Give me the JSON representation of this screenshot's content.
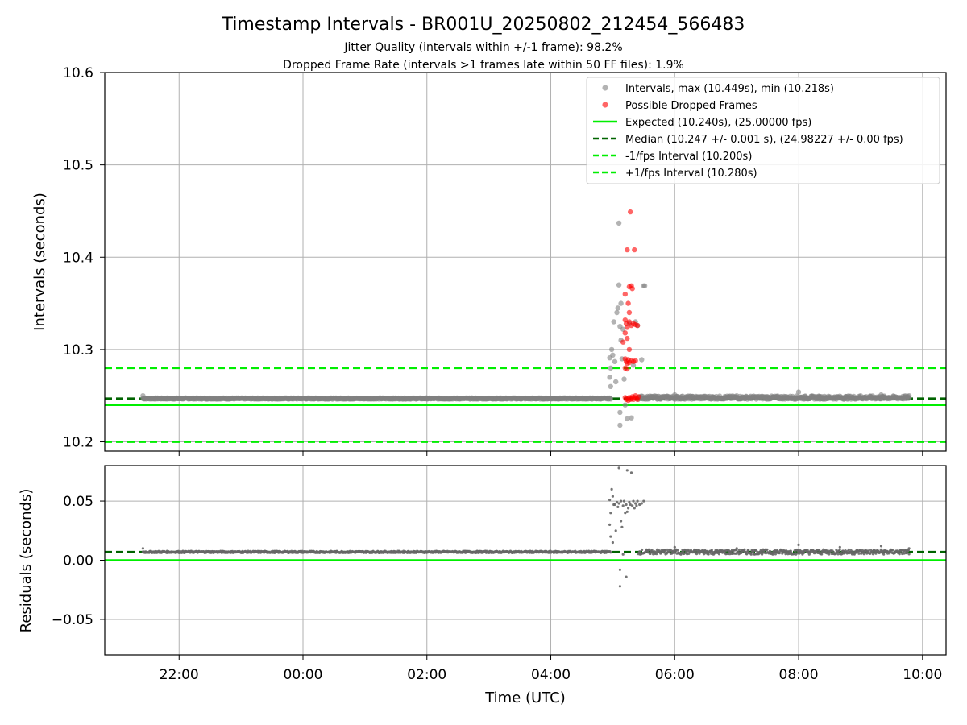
{
  "title": "Timestamp Intervals - BR001U_20250802_212454_566483",
  "subtitle_1": "Jitter Quality (intervals within +/-1 frame): 98.2%",
  "subtitle_2": "Dropped Frame Rate (intervals >1 frames late within 50 FF files): 1.9%",
  "chart_data": [
    {
      "type": "scatter",
      "panel": "top",
      "ylabel": "Intervals (seconds)",
      "xlabel": "",
      "xlim_hours": [
        20.8,
        34.38
      ],
      "ylim": [
        10.19,
        10.6
      ],
      "yticks": [
        10.2,
        10.3,
        10.4,
        10.5,
        10.6
      ],
      "ytick_labels": [
        "10.2",
        "10.3",
        "10.4",
        "10.5",
        "10.6"
      ],
      "grid": true,
      "legend_position": "top-right",
      "series": [
        {
          "name": "Intervals, max (10.449s), min (10.218s)",
          "kind": "scatter",
          "color": "#808080",
          "baseline_segments": [
            {
              "x_start": "21:25",
              "x_end": "04:58",
              "y": 10.247
            },
            {
              "x_start": "05:25",
              "x_end": "09:47",
              "y": 10.248
            }
          ],
          "points": [
            {
              "x": "21:25",
              "y": 10.25
            },
            {
              "x": "04:57",
              "y": 10.291
            },
            {
              "x": "04:57",
              "y": 10.27
            },
            {
              "x": "04:58",
              "y": 10.26
            },
            {
              "x": "04:58",
              "y": 10.28
            },
            {
              "x": "04:59",
              "y": 10.3
            },
            {
              "x": "05:00",
              "y": 10.294
            },
            {
              "x": "05:01",
              "y": 10.33
            },
            {
              "x": "05:02",
              "y": 10.287
            },
            {
              "x": "05:03",
              "y": 10.265
            },
            {
              "x": "05:04",
              "y": 10.34
            },
            {
              "x": "05:05",
              "y": 10.345
            },
            {
              "x": "05:06",
              "y": 10.437
            },
            {
              "x": "05:06",
              "y": 10.37
            },
            {
              "x": "05:07",
              "y": 10.325
            },
            {
              "x": "05:07",
              "y": 10.232
            },
            {
              "x": "05:07",
              "y": 10.218
            },
            {
              "x": "05:08",
              "y": 10.35
            },
            {
              "x": "05:08",
              "y": 10.31
            },
            {
              "x": "05:09",
              "y": 10.29
            },
            {
              "x": "05:10",
              "y": 10.322
            },
            {
              "x": "05:11",
              "y": 10.268
            },
            {
              "x": "05:12",
              "y": 10.24
            },
            {
              "x": "05:14",
              "y": 10.225
            },
            {
              "x": "05:16",
              "y": 10.328
            },
            {
              "x": "05:18",
              "y": 10.226
            },
            {
              "x": "05:20",
              "y": 10.283
            },
            {
              "x": "05:22",
              "y": 10.33
            },
            {
              "x": "05:24",
              "y": 10.326
            },
            {
              "x": "05:28",
              "y": 10.289
            },
            {
              "x": "05:30",
              "y": 10.369
            },
            {
              "x": "05:31",
              "y": 10.369
            },
            {
              "x": "06:00",
              "y": 10.251
            },
            {
              "x": "07:00",
              "y": 10.25
            },
            {
              "x": "08:00",
              "y": 10.254
            },
            {
              "x": "08:20",
              "y": 10.249
            },
            {
              "x": "09:00",
              "y": 10.25
            },
            {
              "x": "09:20",
              "y": 10.251
            },
            {
              "x": "09:47",
              "y": 10.25
            }
          ]
        },
        {
          "name": "Possible Dropped Frames",
          "kind": "scatter",
          "color": "#ff0000",
          "points": [
            {
              "x": "05:14",
              "y": 10.408
            },
            {
              "x": "05:17",
              "y": 10.449
            },
            {
              "x": "05:21",
              "y": 10.408
            },
            {
              "x": "05:12",
              "y": 10.36
            },
            {
              "x": "05:16",
              "y": 10.368
            },
            {
              "x": "05:18",
              "y": 10.369
            },
            {
              "x": "05:19",
              "y": 10.366
            },
            {
              "x": "05:15",
              "y": 10.35
            },
            {
              "x": "05:16",
              "y": 10.34
            },
            {
              "x": "05:12",
              "y": 10.332
            },
            {
              "x": "05:13",
              "y": 10.328
            },
            {
              "x": "05:14",
              "y": 10.324
            },
            {
              "x": "05:16",
              "y": 10.33
            },
            {
              "x": "05:18",
              "y": 10.326
            },
            {
              "x": "05:20",
              "y": 10.328
            },
            {
              "x": "05:22",
              "y": 10.327
            },
            {
              "x": "05:24",
              "y": 10.326
            },
            {
              "x": "05:12",
              "y": 10.318
            },
            {
              "x": "05:14",
              "y": 10.312
            },
            {
              "x": "05:10",
              "y": 10.308
            },
            {
              "x": "05:16",
              "y": 10.3
            },
            {
              "x": "05:12",
              "y": 10.29
            },
            {
              "x": "05:13",
              "y": 10.287
            },
            {
              "x": "05:14",
              "y": 10.285
            },
            {
              "x": "05:15",
              "y": 10.289
            },
            {
              "x": "05:16",
              "y": 10.286
            },
            {
              "x": "05:18",
              "y": 10.288
            },
            {
              "x": "05:20",
              "y": 10.287
            },
            {
              "x": "05:22",
              "y": 10.288
            },
            {
              "x": "05:12",
              "y": 10.28
            },
            {
              "x": "05:14",
              "y": 10.279
            },
            {
              "x": "05:12",
              "y": 10.248
            },
            {
              "x": "05:13",
              "y": 10.246
            },
            {
              "x": "05:14",
              "y": 10.247
            },
            {
              "x": "05:15",
              "y": 10.245
            },
            {
              "x": "05:16",
              "y": 10.248
            },
            {
              "x": "05:17",
              "y": 10.246
            },
            {
              "x": "05:18",
              "y": 10.247
            },
            {
              "x": "05:19",
              "y": 10.249
            },
            {
              "x": "05:20",
              "y": 10.246
            },
            {
              "x": "05:21",
              "y": 10.248
            },
            {
              "x": "05:22",
              "y": 10.25
            },
            {
              "x": "05:23",
              "y": 10.247
            },
            {
              "x": "05:24",
              "y": 10.246
            },
            {
              "x": "05:25",
              "y": 10.249
            }
          ]
        },
        {
          "name": "Expected (10.240s), (25.00000 fps)",
          "kind": "hline",
          "y": 10.24,
          "color": "#00ee00",
          "style": "solid"
        },
        {
          "name": "Median (10.247 +/- 0.001 s), (24.98227 +/- 0.00 fps)",
          "kind": "hline",
          "y": 10.247,
          "color": "#006400",
          "style": "dashed"
        },
        {
          "name": "-1/fps Interval (10.200s)",
          "kind": "hline",
          "y": 10.2,
          "color": "#00ee00",
          "style": "dashed"
        },
        {
          "name": "+1/fps Interval (10.280s)",
          "kind": "hline",
          "y": 10.28,
          "color": "#00ee00",
          "style": "dashed"
        }
      ]
    },
    {
      "type": "scatter",
      "panel": "bottom",
      "ylabel": "Residuals (seconds)",
      "xlabel": "Time (UTC)",
      "xlim_hours": [
        20.8,
        34.38
      ],
      "ylim": [
        -0.08,
        0.08
      ],
      "yticks": [
        -0.05,
        0.0,
        0.05
      ],
      "ytick_labels": [
        "−0.05",
        "0.00",
        "0.05"
      ],
      "xticks_hours": [
        22,
        24,
        26,
        28,
        30,
        32,
        34
      ],
      "xtick_labels": [
        "22:00",
        "00:00",
        "02:00",
        "04:00",
        "06:00",
        "08:00",
        "10:00"
      ],
      "grid": true,
      "series": [
        {
          "kind": "scatter",
          "color": "#666666",
          "baseline_segments": [
            {
              "x_start": "21:25",
              "x_end": "04:58",
              "y": 0.007
            },
            {
              "x_start": "05:25",
              "x_end": "09:47",
              "y": 0.007
            }
          ],
          "points": [
            {
              "x": "21:25",
              "y": 0.01
            },
            {
              "x": "04:57",
              "y": 0.051
            },
            {
              "x": "04:57",
              "y": 0.03
            },
            {
              "x": "04:58",
              "y": 0.02
            },
            {
              "x": "04:58",
              "y": 0.04
            },
            {
              "x": "04:59",
              "y": 0.06
            },
            {
              "x": "05:00",
              "y": 0.054
            },
            {
              "x": "05:00",
              "y": 0.015
            },
            {
              "x": "05:01",
              "y": 0.047
            },
            {
              "x": "05:02",
              "y": 0.047
            },
            {
              "x": "05:03",
              "y": 0.025
            },
            {
              "x": "05:04",
              "y": 0.049
            },
            {
              "x": "05:05",
              "y": 0.045
            },
            {
              "x": "05:06",
              "y": 0.078
            },
            {
              "x": "05:06",
              "y": 0.048
            },
            {
              "x": "05:07",
              "y": -0.008
            },
            {
              "x": "05:07",
              "y": -0.022
            },
            {
              "x": "05:08",
              "y": 0.05
            },
            {
              "x": "05:08",
              "y": 0.033
            },
            {
              "x": "05:09",
              "y": 0.028
            },
            {
              "x": "05:10",
              "y": 0.046
            },
            {
              "x": "05:10",
              "y": 0.005
            },
            {
              "x": "05:11",
              "y": 0.05
            },
            {
              "x": "05:12",
              "y": 0.04
            },
            {
              "x": "05:13",
              "y": 0.047
            },
            {
              "x": "05:13",
              "y": -0.014
            },
            {
              "x": "05:14",
              "y": 0.041
            },
            {
              "x": "05:14",
              "y": 0.076
            },
            {
              "x": "05:15",
              "y": 0.044
            },
            {
              "x": "05:16",
              "y": 0.049
            },
            {
              "x": "05:17",
              "y": 0.047
            },
            {
              "x": "05:18",
              "y": 0.074
            },
            {
              "x": "05:19",
              "y": 0.046
            },
            {
              "x": "05:20",
              "y": 0.05
            },
            {
              "x": "05:21",
              "y": 0.044
            },
            {
              "x": "05:22",
              "y": 0.048
            },
            {
              "x": "05:23",
              "y": 0.046
            },
            {
              "x": "05:24",
              "y": 0.05
            },
            {
              "x": "05:26",
              "y": 0.047
            },
            {
              "x": "05:28",
              "y": 0.048
            },
            {
              "x": "05:30",
              "y": 0.05
            },
            {
              "x": "06:00",
              "y": 0.011
            },
            {
              "x": "07:00",
              "y": 0.01
            },
            {
              "x": "08:00",
              "y": 0.013
            },
            {
              "x": "08:40",
              "y": 0.011
            },
            {
              "x": "09:20",
              "y": 0.012
            },
            {
              "x": "09:47",
              "y": 0.01
            }
          ]
        },
        {
          "kind": "hline",
          "y": 0.0,
          "color": "#00ee00",
          "style": "solid"
        },
        {
          "kind": "hline",
          "y": 0.007,
          "color": "#006400",
          "style": "dashed"
        }
      ]
    }
  ]
}
